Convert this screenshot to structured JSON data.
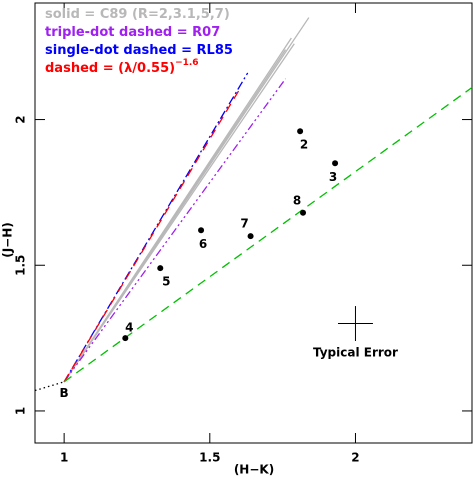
{
  "chart_data": {
    "type": "scatter",
    "xlabel": "(H−K)",
    "ylabel": "(J−H)",
    "xlim": [
      0.9,
      2.4
    ],
    "ylim": [
      0.89,
      2.4
    ],
    "xticks": [
      1,
      1.5,
      2
    ],
    "yticks": [
      1,
      1.5,
      2
    ],
    "lines": [
      {
        "name": "solid = C89 (R=2,3.1,5,7)",
        "color": "#b8b8b8",
        "dash": "solid",
        "segments": [
          {
            "x": [
              1.0,
              1.84
            ],
            "y": [
              1.1,
              2.35
            ]
          },
          {
            "x": [
              1.0,
              1.78
            ],
            "y": [
              1.1,
              2.28
            ]
          },
          {
            "x": [
              1.0,
              1.79
            ],
            "y": [
              1.1,
              2.26
            ]
          },
          {
            "x": [
              1.0,
              1.76
            ],
            "y": [
              1.1,
              2.24
            ]
          }
        ]
      },
      {
        "name": "triple-dot dashed = R07",
        "color": "#a020f0",
        "dash": "triple-dot",
        "segments": [
          {
            "x": [
              1.0,
              1.76
            ],
            "y": [
              1.1,
              2.14
            ]
          }
        ]
      },
      {
        "name": "single-dot dashed = RL85",
        "color": "#0000ff",
        "dash": "dot-dash",
        "segments": [
          {
            "x": [
              1.0,
              1.63
            ],
            "y": [
              1.1,
              2.16
            ]
          }
        ]
      },
      {
        "name": "dashed = (λ/0.55)",
        "name_superscript": "−1.6",
        "color": "#ff0000",
        "dash": "dashed",
        "segments": [
          {
            "x": [
              1.0,
              1.6
            ],
            "y": [
              1.1,
              2.1
            ]
          }
        ]
      },
      {
        "color": "#00c000",
        "dash": "dashed",
        "segments": [
          {
            "x": [
              1.0,
              2.4
            ],
            "y": [
              1.1,
              2.11
            ]
          }
        ]
      },
      {
        "color": "#000000",
        "dash": "dotted",
        "segments": [
          {
            "x": [
              0.9,
              1.0
            ],
            "y": [
              1.07,
              1.1
            ]
          }
        ]
      }
    ],
    "points": {
      "color": "#000000",
      "labels": [
        "2",
        "3",
        "4",
        "5",
        "6",
        "7",
        "8"
      ],
      "x": [
        1.81,
        1.93,
        1.21,
        1.33,
        1.47,
        1.64,
        1.82
      ],
      "y": [
        1.96,
        1.85,
        1.25,
        1.49,
        1.62,
        1.6,
        1.68
      ]
    },
    "origin_label": {
      "text": "B",
      "x": 1.0,
      "y": 1.06
    },
    "error": {
      "label": "Typical Error",
      "x": 2.0,
      "y": 1.3,
      "xerr": 0.06,
      "yerr": 0.06
    }
  }
}
